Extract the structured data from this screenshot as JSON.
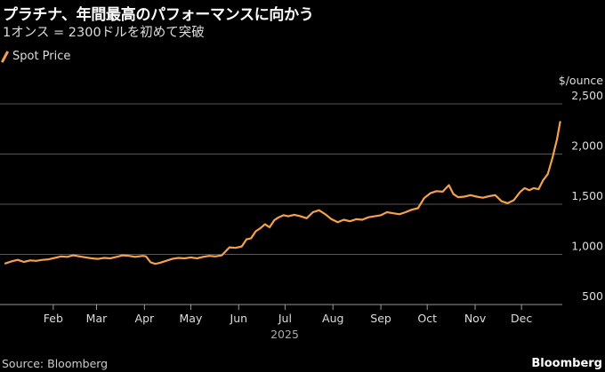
{
  "header": {
    "title": "プラチナ、年間最高のパフォーマンスに向かう",
    "subtitle": "1オンス = 2300ドルを初めて突破"
  },
  "footer": {
    "source": "Source: Bloomberg",
    "brand": "Bloomberg"
  },
  "colors": {
    "series": "#f5a04a",
    "grid": "#555555",
    "text": "#dddddd"
  },
  "chart_data": {
    "type": "line",
    "unit_label": "$/ounce",
    "ylim": [
      500,
      2500
    ],
    "yticks": [
      500,
      1000,
      1500,
      2000,
      2500
    ],
    "ytick_labels": [
      "500",
      "1,000",
      "1,500",
      "2,000",
      "2,500"
    ],
    "grid": true,
    "legend_position": "top-left",
    "x_months": [
      "Feb",
      "Mar",
      "Apr",
      "May",
      "Jun",
      "Jul",
      "Aug",
      "Sep",
      "Oct",
      "Nov",
      "Dec"
    ],
    "x_year": "2025",
    "series": [
      {
        "name": "Spot Price",
        "points": [
          [
            "2025-01-01",
            910
          ],
          [
            "2025-01-05",
            930
          ],
          [
            "2025-01-09",
            945
          ],
          [
            "2025-01-13",
            925
          ],
          [
            "2025-01-17",
            940
          ],
          [
            "2025-01-21",
            935
          ],
          [
            "2025-01-25",
            945
          ],
          [
            "2025-01-29",
            950
          ],
          [
            "2025-02-02",
            965
          ],
          [
            "2025-02-06",
            980
          ],
          [
            "2025-02-10",
            975
          ],
          [
            "2025-02-14",
            990
          ],
          [
            "2025-02-18",
            980
          ],
          [
            "2025-02-22",
            970
          ],
          [
            "2025-02-26",
            960
          ],
          [
            "2025-03-02",
            955
          ],
          [
            "2025-03-06",
            965
          ],
          [
            "2025-03-10",
            960
          ],
          [
            "2025-03-14",
            975
          ],
          [
            "2025-03-18",
            990
          ],
          [
            "2025-03-22",
            985
          ],
          [
            "2025-03-26",
            975
          ],
          [
            "2025-03-31",
            985
          ],
          [
            "2025-04-02",
            980
          ],
          [
            "2025-04-05",
            920
          ],
          [
            "2025-04-08",
            905
          ],
          [
            "2025-04-11",
            915
          ],
          [
            "2025-04-15",
            935
          ],
          [
            "2025-04-19",
            955
          ],
          [
            "2025-04-23",
            965
          ],
          [
            "2025-04-27",
            960
          ],
          [
            "2025-05-01",
            970
          ],
          [
            "2025-05-05",
            960
          ],
          [
            "2025-05-09",
            975
          ],
          [
            "2025-05-13",
            985
          ],
          [
            "2025-05-17",
            980
          ],
          [
            "2025-05-21",
            990
          ],
          [
            "2025-05-26",
            1070
          ],
          [
            "2025-05-30",
            1065
          ],
          [
            "2025-06-03",
            1080
          ],
          [
            "2025-06-06",
            1150
          ],
          [
            "2025-06-09",
            1160
          ],
          [
            "2025-06-12",
            1230
          ],
          [
            "2025-06-15",
            1260
          ],
          [
            "2025-06-18",
            1300
          ],
          [
            "2025-06-21",
            1270
          ],
          [
            "2025-06-24",
            1340
          ],
          [
            "2025-06-27",
            1370
          ],
          [
            "2025-06-30",
            1390
          ],
          [
            "2025-07-03",
            1380
          ],
          [
            "2025-07-07",
            1395
          ],
          [
            "2025-07-11",
            1380
          ],
          [
            "2025-07-15",
            1360
          ],
          [
            "2025-07-19",
            1420
          ],
          [
            "2025-07-23",
            1440
          ],
          [
            "2025-07-27",
            1400
          ],
          [
            "2025-07-31",
            1350
          ],
          [
            "2025-08-04",
            1320
          ],
          [
            "2025-08-08",
            1345
          ],
          [
            "2025-08-12",
            1330
          ],
          [
            "2025-08-16",
            1350
          ],
          [
            "2025-08-20",
            1345
          ],
          [
            "2025-08-24",
            1370
          ],
          [
            "2025-08-28",
            1380
          ],
          [
            "2025-09-01",
            1390
          ],
          [
            "2025-09-05",
            1420
          ],
          [
            "2025-09-09",
            1410
          ],
          [
            "2025-09-13",
            1400
          ],
          [
            "2025-09-17",
            1420
          ],
          [
            "2025-09-21",
            1445
          ],
          [
            "2025-09-25",
            1460
          ],
          [
            "2025-09-29",
            1560
          ],
          [
            "2025-10-03",
            1610
          ],
          [
            "2025-10-07",
            1630
          ],
          [
            "2025-10-11",
            1625
          ],
          [
            "2025-10-15",
            1690
          ],
          [
            "2025-10-18",
            1600
          ],
          [
            "2025-10-21",
            1570
          ],
          [
            "2025-10-25",
            1575
          ],
          [
            "2025-10-29",
            1590
          ],
          [
            "2025-11-02",
            1575
          ],
          [
            "2025-11-06",
            1565
          ],
          [
            "2025-11-10",
            1580
          ],
          [
            "2025-11-14",
            1590
          ],
          [
            "2025-11-18",
            1530
          ],
          [
            "2025-11-22",
            1510
          ],
          [
            "2025-11-26",
            1540
          ],
          [
            "2025-11-30",
            1620
          ],
          [
            "2025-12-03",
            1660
          ],
          [
            "2025-12-06",
            1640
          ],
          [
            "2025-12-09",
            1660
          ],
          [
            "2025-12-12",
            1650
          ],
          [
            "2025-12-15",
            1740
          ],
          [
            "2025-12-18",
            1800
          ],
          [
            "2025-12-21",
            1960
          ],
          [
            "2025-12-24",
            2150
          ],
          [
            "2025-12-26",
            2320
          ]
        ]
      }
    ]
  }
}
